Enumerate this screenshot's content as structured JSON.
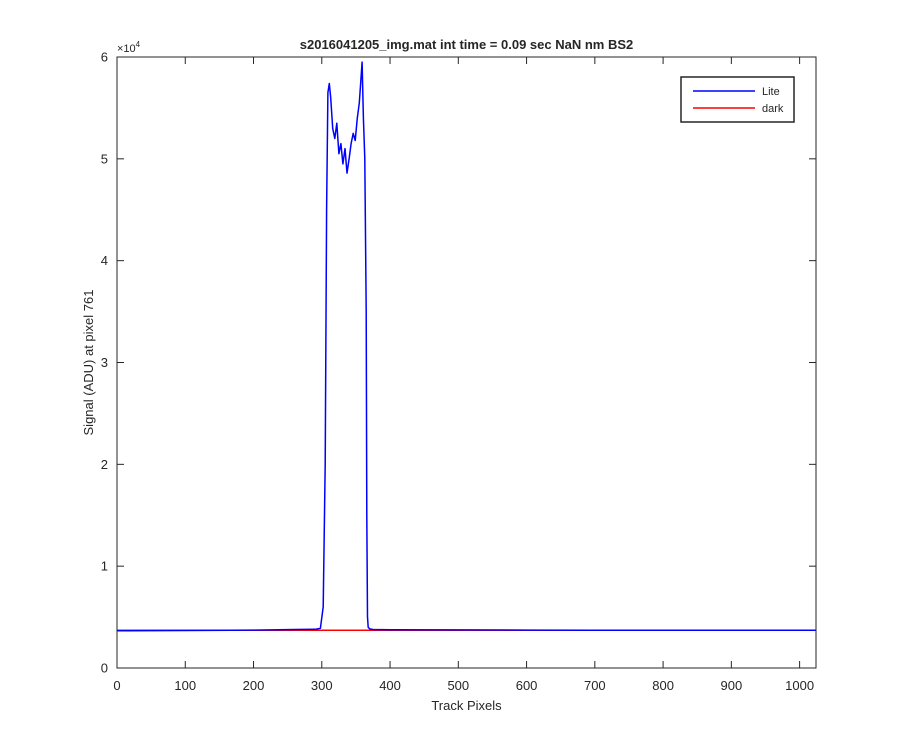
{
  "chart_data": {
    "type": "line",
    "title": "s2016041205_img.mat int time = 0.09 sec  NaN nm BS2",
    "xlabel": "Track Pixels",
    "ylabel": "Signal (ADU) at pixel 761",
    "xlim": [
      0,
      1024
    ],
    "ylim": [
      0,
      60000
    ],
    "xticks": [
      0,
      100,
      200,
      300,
      400,
      500,
      600,
      700,
      800,
      900,
      1000
    ],
    "yticks": [
      0,
      10000,
      20000,
      30000,
      40000,
      50000,
      60000
    ],
    "ytick_labels": [
      "0",
      "1",
      "2",
      "3",
      "4",
      "5",
      "6"
    ],
    "y_exponent_label": "×10",
    "y_exponent": "4",
    "grid": false,
    "legend": "top-right",
    "series": [
      {
        "name": "Lite",
        "color": "#0000ff",
        "x": [
          0,
          100,
          200,
          260,
          290,
          298,
          302,
          305,
          307,
          309,
          311,
          313,
          316,
          319,
          322,
          325,
          328,
          331,
          334,
          337,
          340,
          343,
          346,
          349,
          352,
          355,
          357,
          359,
          361,
          363,
          365,
          366,
          367,
          368,
          370,
          375,
          400,
          500,
          600,
          700,
          800,
          900,
          1024
        ],
        "y": [
          3650,
          3680,
          3720,
          3780,
          3800,
          3900,
          6000,
          20000,
          45000,
          56500,
          57400,
          56000,
          53000,
          52000,
          53500,
          50500,
          51500,
          49500,
          51000,
          48600,
          50000,
          51500,
          52500,
          51800,
          54000,
          55500,
          57500,
          59500,
          54000,
          50000,
          35000,
          15000,
          5000,
          4000,
          3850,
          3780,
          3760,
          3740,
          3720,
          3710,
          3700,
          3700,
          3700
        ]
      },
      {
        "name": "dark",
        "color": "#ff0000",
        "x": [
          0,
          1024
        ],
        "y": [
          3700,
          3700
        ]
      }
    ]
  }
}
